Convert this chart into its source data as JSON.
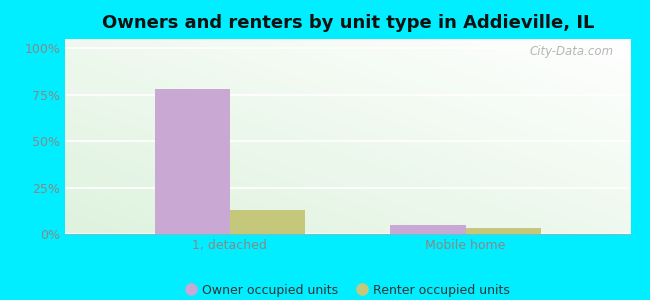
{
  "title": "Owners and renters by unit type in Addieville, IL",
  "categories": [
    "1, detached",
    "Mobile home"
  ],
  "owner_values": [
    78,
    5
  ],
  "renter_values": [
    13,
    3
  ],
  "owner_color": "#c9a8d4",
  "renter_color": "#c5c87a",
  "yticks": [
    0,
    25,
    50,
    75,
    100
  ],
  "ytick_labels": [
    "0%",
    "25%",
    "50%",
    "75%",
    "100%"
  ],
  "ylim": [
    0,
    105
  ],
  "outer_bg": "#00eeff",
  "watermark": "City-Data.com",
  "legend_owner": "Owner occupied units",
  "legend_renter": "Renter occupied units",
  "bar_width": 0.32,
  "title_fontsize": 13,
  "tick_fontsize": 9,
  "legend_fontsize": 9,
  "grid_color": "#ccddcc",
  "tick_color": "#888888"
}
